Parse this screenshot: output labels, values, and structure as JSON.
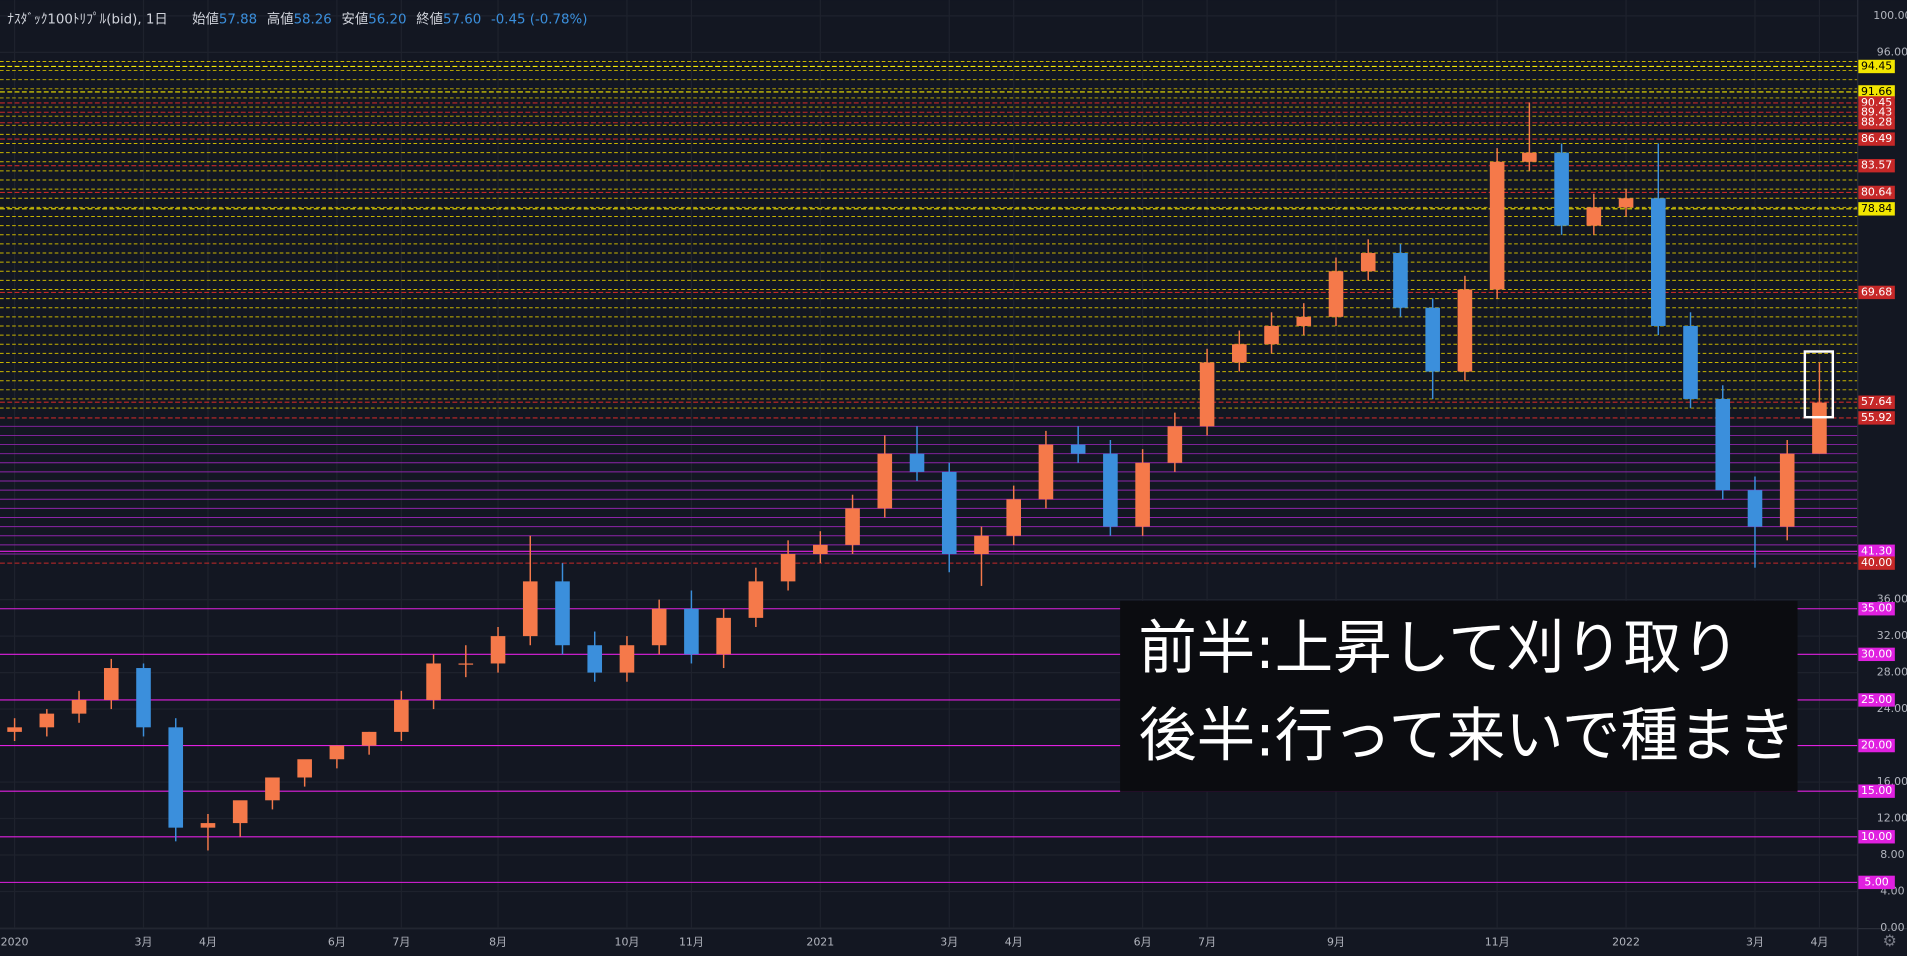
{
  "chart_data": {
    "type": "candlestick",
    "title": "ﾅｽﾀﾞｯｸ100ﾄﾘﾌﾟﾙ(bid), 1日",
    "stats": [
      {
        "label": "始値",
        "value": "57.88"
      },
      {
        "label": "高値",
        "value": "58.26"
      },
      {
        "label": "安値",
        "value": "56.20"
      },
      {
        "label": "終値",
        "value": "57.60"
      }
    ],
    "change": "-0.45 (-0.78%)",
    "categories": [
      "2020",
      null,
      null,
      null,
      "3月",
      null,
      "4月",
      null,
      null,
      null,
      "6月",
      null,
      "7月",
      null,
      null,
      "8月",
      null,
      null,
      null,
      "10月",
      null,
      "11月",
      null,
      null,
      null,
      "2021",
      null,
      null,
      null,
      "3月",
      null,
      "4月",
      null,
      null,
      null,
      "6月",
      null,
      "7月",
      null,
      null,
      null,
      "9月",
      null,
      null,
      null,
      null,
      "11月",
      null,
      null,
      null,
      "2022",
      null,
      null,
      null,
      "3月",
      null,
      "4月"
    ],
    "open": [
      21.5,
      22,
      23.5,
      25,
      28.5,
      22,
      11,
      11.5,
      14,
      16.5,
      18.5,
      20,
      21.5,
      25,
      29,
      29,
      32,
      38,
      31,
      28,
      31,
      35,
      30,
      34,
      38,
      41,
      42,
      46,
      52,
      50,
      41,
      43,
      47,
      53,
      52,
      44,
      51,
      55,
      62,
      64,
      66,
      67,
      72,
      74,
      68,
      61,
      70,
      84,
      85,
      77,
      79,
      80,
      66,
      58,
      48,
      44,
      52
    ],
    "high": [
      23,
      24,
      26,
      29.5,
      29,
      23,
      12.5,
      13,
      15.5,
      18,
      20,
      21.5,
      26,
      30,
      31,
      33,
      43,
      40,
      32.5,
      32,
      36,
      37,
      35,
      39.5,
      42.5,
      43.5,
      47.5,
      54,
      55,
      51,
      44,
      48.5,
      54.5,
      55,
      53.5,
      52.5,
      56.5,
      63.5,
      65.5,
      67.5,
      68.5,
      73.5,
      75.5,
      75,
      69,
      71.5,
      85.5,
      90.5,
      86,
      80.5,
      81,
      86,
      67.5,
      59.5,
      49.5,
      53.5,
      62
    ],
    "low": [
      20.5,
      21,
      22.5,
      24,
      21,
      9.5,
      8.5,
      10,
      13,
      15.5,
      17.5,
      19,
      20.5,
      24,
      27.5,
      28,
      31,
      30,
      27,
      27,
      30,
      29,
      28.5,
      33,
      37,
      40,
      41,
      45,
      49,
      39,
      37.5,
      42,
      46,
      51,
      43,
      43,
      50,
      54,
      61,
      63,
      65,
      66,
      71,
      67,
      58,
      60,
      69,
      83,
      76,
      76,
      78,
      65,
      57,
      47,
      39.5,
      42.5,
      52
    ],
    "close": [
      22,
      23.5,
      25,
      28.5,
      22,
      11,
      11.5,
      14,
      16.5,
      18.5,
      20,
      21.5,
      25,
      29,
      29,
      32,
      38,
      31,
      28,
      31,
      35,
      30,
      34,
      38,
      41,
      42,
      46,
      52,
      50,
      41,
      43,
      47,
      53,
      52,
      44,
      51,
      55,
      62,
      64,
      66,
      67,
      72,
      74,
      68,
      61,
      70,
      84,
      85,
      77,
      79,
      80,
      66,
      58,
      48,
      44,
      52,
      57.6
    ],
    "up_color": "#f5794a",
    "down_color": "#3b8fdc",
    "ylim": [
      0,
      100
    ],
    "yticks": [
      {
        "value": 100,
        "label": "100.00"
      },
      {
        "value": 96,
        "label": "96.00"
      },
      {
        "value": 36,
        "label": "36.00"
      },
      {
        "value": 32,
        "label": "32.00"
      },
      {
        "value": 28,
        "label": "28.00"
      },
      {
        "value": 24,
        "label": "24.00"
      },
      {
        "value": 16,
        "label": "16.00"
      },
      {
        "value": 12,
        "label": "12.00"
      },
      {
        "value": 8,
        "label": "8.00"
      },
      {
        "value": 4,
        "label": "4.00"
      },
      {
        "value": 0,
        "label": "0.00"
      }
    ],
    "grid": true,
    "levels": [
      {
        "value": 94.45,
        "label": "94.45",
        "color": "#f2e600"
      },
      {
        "value": 91.66,
        "label": "91.66",
        "color": "#f2e600"
      },
      {
        "value": 90.45,
        "label": "90.45",
        "color": "#c62828"
      },
      {
        "value": 89.43,
        "label": "89.43",
        "color": "#c62828"
      },
      {
        "value": 88.28,
        "label": "88.28",
        "color": "#c62828"
      },
      {
        "value": 86.49,
        "label": "86.49",
        "color": "#c62828"
      },
      {
        "value": 83.57,
        "label": "83.57",
        "color": "#c62828"
      },
      {
        "value": 80.64,
        "label": "80.64",
        "color": "#c62828"
      },
      {
        "value": 78.84,
        "label": "78.84",
        "color": "#f2e600"
      },
      {
        "value": 69.68,
        "label": "69.68",
        "color": "#c62828"
      },
      {
        "value": 57.64,
        "label": "57.64",
        "color": "#c62828"
      },
      {
        "value": 55.92,
        "label": "55.92",
        "color": "#c62828"
      },
      {
        "value": 41.3,
        "label": "41.30",
        "color": "#e020e0"
      },
      {
        "value": 40,
        "label": "40.00",
        "color": "#c62828"
      },
      {
        "value": 35,
        "label": "35.00",
        "color": "#e020e0"
      },
      {
        "value": 30,
        "label": "30.00",
        "color": "#e020e0"
      },
      {
        "value": 25,
        "label": "25.00",
        "color": "#e020e0"
      },
      {
        "value": 20,
        "label": "20.00",
        "color": "#e020e0"
      },
      {
        "value": 15,
        "label": "15.00",
        "color": "#e020e0"
      },
      {
        "value": 10,
        "label": "10.00",
        "color": "#e020e0"
      },
      {
        "value": 5,
        "label": "5.00",
        "color": "#e020e0"
      }
    ],
    "yellow_lines": [
      57,
      58,
      59,
      60,
      61,
      62,
      63,
      64,
      65,
      66,
      67,
      68,
      69,
      70,
      71,
      72,
      73,
      74,
      75,
      76,
      77,
      78,
      79,
      80,
      81,
      82,
      83,
      84,
      85,
      86,
      87,
      88,
      89,
      90,
      91,
      92,
      93,
      94,
      95
    ],
    "yellow_line_color": "#c8b400",
    "magenta_lines": [
      41,
      42,
      43,
      44,
      45,
      46,
      47,
      48,
      49,
      50,
      51,
      52,
      53,
      54,
      55
    ],
    "magenta_line_color": "#8e24aa",
    "annotation": [
      "前半:上昇して刈り取り",
      "後半:行って来いで種まき"
    ]
  }
}
